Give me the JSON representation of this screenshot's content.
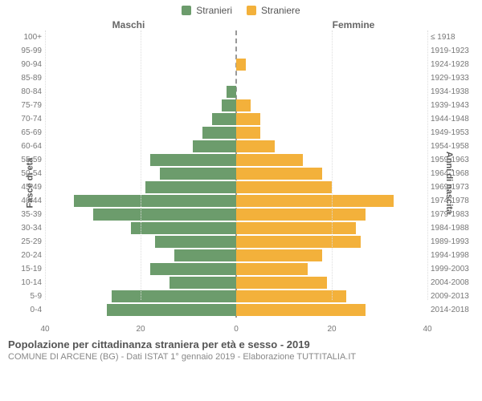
{
  "legend": {
    "male": {
      "label": "Stranieri",
      "color": "#6c9c6c"
    },
    "female": {
      "label": "Straniere",
      "color": "#f3b13b"
    }
  },
  "group_headers": {
    "left": "Maschi",
    "right": "Femmine"
  },
  "yaxis": {
    "left_title": "Fasce di età",
    "right_title": "Anni di nascita"
  },
  "xaxis": {
    "ticks_left": [
      40,
      20,
      0
    ],
    "ticks_right": [
      20,
      40
    ],
    "max": 40
  },
  "rows": [
    {
      "age": "100+",
      "birth": "≤ 1918",
      "m": 0,
      "f": 0
    },
    {
      "age": "95-99",
      "birth": "1919-1923",
      "m": 0,
      "f": 0
    },
    {
      "age": "90-94",
      "birth": "1924-1928",
      "m": 0,
      "f": 2
    },
    {
      "age": "85-89",
      "birth": "1929-1933",
      "m": 0,
      "f": 0
    },
    {
      "age": "80-84",
      "birth": "1934-1938",
      "m": 2,
      "f": 0
    },
    {
      "age": "75-79",
      "birth": "1939-1943",
      "m": 3,
      "f": 3
    },
    {
      "age": "70-74",
      "birth": "1944-1948",
      "m": 5,
      "f": 5
    },
    {
      "age": "65-69",
      "birth": "1949-1953",
      "m": 7,
      "f": 5
    },
    {
      "age": "60-64",
      "birth": "1954-1958",
      "m": 9,
      "f": 8
    },
    {
      "age": "55-59",
      "birth": "1959-1963",
      "m": 18,
      "f": 14
    },
    {
      "age": "50-54",
      "birth": "1964-1968",
      "m": 16,
      "f": 18
    },
    {
      "age": "45-49",
      "birth": "1969-1973",
      "m": 19,
      "f": 20
    },
    {
      "age": "40-44",
      "birth": "1974-1978",
      "m": 34,
      "f": 33
    },
    {
      "age": "35-39",
      "birth": "1979-1983",
      "m": 30,
      "f": 27
    },
    {
      "age": "30-34",
      "birth": "1984-1988",
      "m": 22,
      "f": 25
    },
    {
      "age": "25-29",
      "birth": "1989-1993",
      "m": 17,
      "f": 26
    },
    {
      "age": "20-24",
      "birth": "1994-1998",
      "m": 13,
      "f": 18
    },
    {
      "age": "15-19",
      "birth": "1999-2003",
      "m": 18,
      "f": 15
    },
    {
      "age": "10-14",
      "birth": "2004-2008",
      "m": 14,
      "f": 19
    },
    {
      "age": "5-9",
      "birth": "2009-2013",
      "m": 26,
      "f": 23
    },
    {
      "age": "0-4",
      "birth": "2014-2018",
      "m": 27,
      "f": 27
    }
  ],
  "grid_color": "#dddddd",
  "center_line_color": "#999999",
  "footer": {
    "title": "Popolazione per cittadinanza straniera per età e sesso - 2019",
    "subtitle": "COMUNE DI ARCENE (BG) - Dati ISTAT 1° gennaio 2019 - Elaborazione TUTTITALIA.IT"
  }
}
